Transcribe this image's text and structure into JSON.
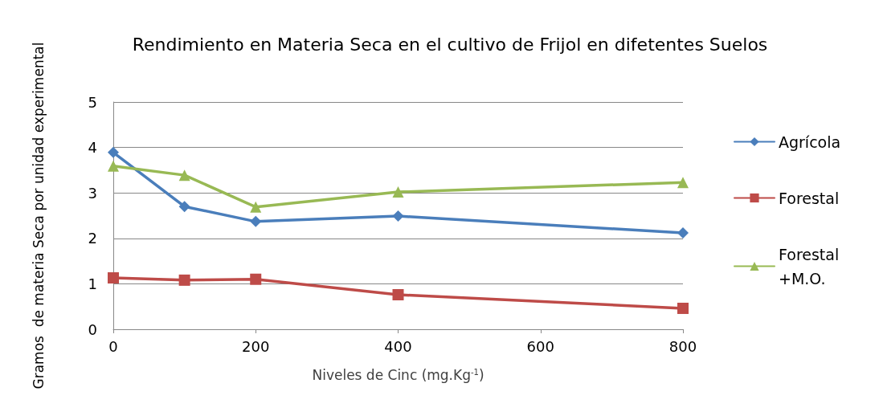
{
  "chart_data": {
    "type": "line",
    "title": "Rendimiento en Materia Seca en el cultivo de Frijol en difetentes Suelos",
    "xlabel": "Niveles de Cinc (mg.Kg$^{-1}$)",
    "ylabel": "Gramos  de materia Seca por unidad experimental",
    "x": [
      0,
      100,
      200,
      400,
      800
    ],
    "series": [
      {
        "name": "Agrícola",
        "color": "#4a7ebb",
        "marker": "diamond",
        "values": [
          3.89,
          2.7,
          2.37,
          2.49,
          2.12
        ]
      },
      {
        "name": "Forestal",
        "color": "#be4b48",
        "marker": "square",
        "values": [
          1.13,
          1.08,
          1.1,
          0.76,
          0.46
        ]
      },
      {
        "name": "Forestal +M.O.",
        "color": "#98b954",
        "marker": "triangle",
        "values": [
          3.59,
          3.39,
          2.69,
          3.02,
          3.23
        ]
      }
    ],
    "xlim": [
      0,
      800
    ],
    "xticks": [
      0,
      200,
      400,
      600,
      800
    ],
    "ylim": [
      0,
      5
    ],
    "yticks": [
      0,
      1,
      2,
      3,
      4,
      5
    ],
    "grid": "y",
    "legend": "right",
    "line_style": "solid"
  }
}
